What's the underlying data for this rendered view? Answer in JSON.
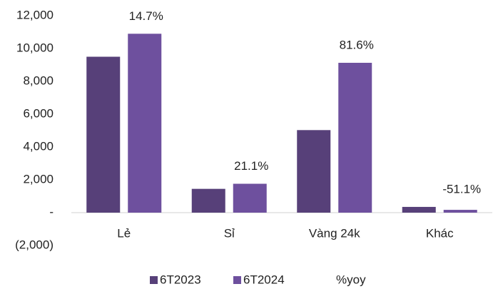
{
  "chart_data": {
    "type": "bar",
    "categories": [
      "Lẻ",
      "Sỉ",
      "Vàng 24k",
      "Khác"
    ],
    "series": [
      {
        "name": "6T2023",
        "color": "#574079",
        "values": [
          9500,
          1450,
          5030,
          350
        ]
      },
      {
        "name": "6T2024",
        "color": "#6e509e",
        "values": [
          10900,
          1760,
          9130,
          171
        ]
      },
      {
        "name": "%yoy",
        "values": [
          14.7,
          21.1,
          81.6,
          -51.1
        ],
        "value_labels": [
          "14.7%",
          "21.1%",
          "81.6%",
          "-51.1%"
        ]
      }
    ],
    "ylim": [
      -2000,
      12000
    ],
    "yticks": [
      {
        "value": -2000,
        "label": "(2,000)"
      },
      {
        "value": 0,
        "label": "-"
      },
      {
        "value": 2000,
        "label": "2,000"
      },
      {
        "value": 4000,
        "label": "4,000"
      },
      {
        "value": 6000,
        "label": "6,000"
      },
      {
        "value": 8000,
        "label": "8,000"
      },
      {
        "value": 10000,
        "label": "10,000"
      },
      {
        "value": 12000,
        "label": "12,000"
      }
    ],
    "legend": "bottom"
  }
}
